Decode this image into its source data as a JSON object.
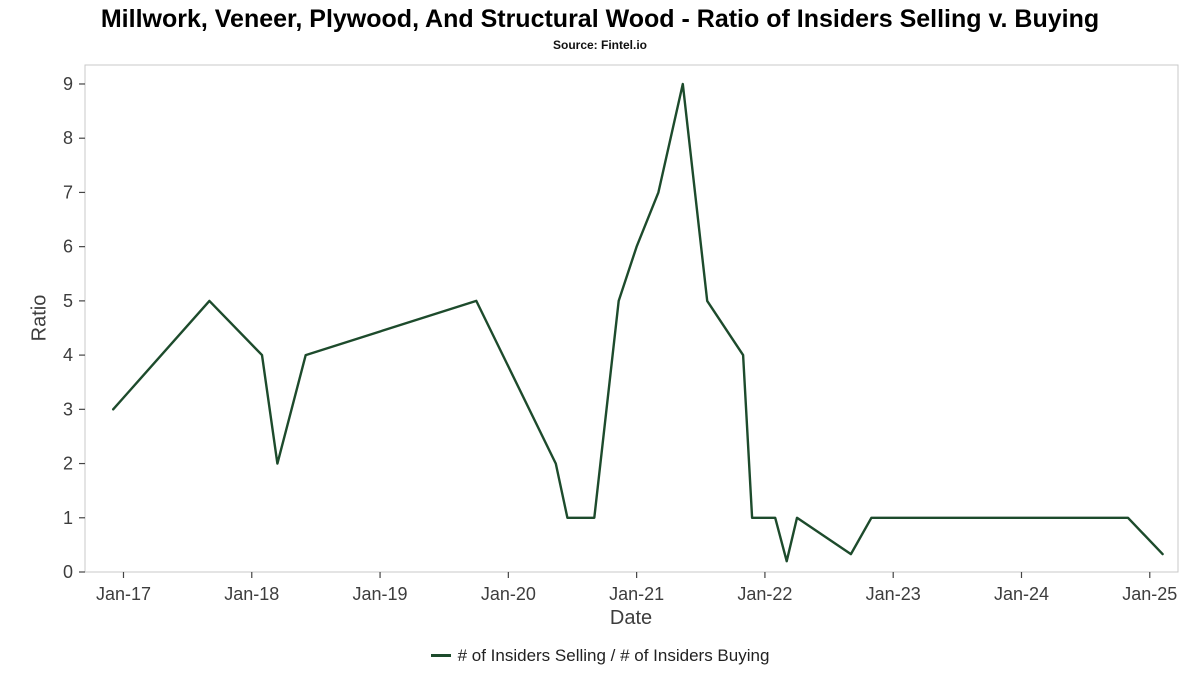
{
  "chart_data": {
    "type": "line",
    "title": "Millwork, Veneer, Plywood, And Structural Wood - Ratio of Insiders Selling v. Buying",
    "source": "Source: Fintel.io",
    "xlabel": "Date",
    "ylabel": "Ratio",
    "legend": "# of Insiders Selling / # of Insiders Buying",
    "line_color": "#1d4b2c",
    "axis_text_color": "#3d3d3d",
    "x_domain": [
      2016.7,
      2025.22
    ],
    "y_domain": [
      0,
      9.35
    ],
    "y_ticks": [
      0,
      1,
      2,
      3,
      4,
      5,
      6,
      7,
      8,
      9
    ],
    "x_ticks": [
      {
        "x": 2017,
        "label": "Jan-17"
      },
      {
        "x": 2018,
        "label": "Jan-18"
      },
      {
        "x": 2019,
        "label": "Jan-19"
      },
      {
        "x": 2020,
        "label": "Jan-20"
      },
      {
        "x": 2021,
        "label": "Jan-21"
      },
      {
        "x": 2022,
        "label": "Jan-22"
      },
      {
        "x": 2023,
        "label": "Jan-23"
      },
      {
        "x": 2024,
        "label": "Jan-24"
      },
      {
        "x": 2025,
        "label": "Jan-25"
      }
    ],
    "points": [
      {
        "date": "Dec-16",
        "x": 2016.92,
        "y": 3
      },
      {
        "date": "Sep-17",
        "x": 2017.67,
        "y": 5
      },
      {
        "date": "Jan-18",
        "x": 2018.08,
        "y": 4
      },
      {
        "date": "Mar-18",
        "x": 2018.2,
        "y": 2
      },
      {
        "date": "Jun-18",
        "x": 2018.42,
        "y": 4
      },
      {
        "date": "Oct-19",
        "x": 2019.75,
        "y": 5
      },
      {
        "date": "May-20",
        "x": 2020.37,
        "y": 2
      },
      {
        "date": "Jun-20",
        "x": 2020.46,
        "y": 1
      },
      {
        "date": "Sep-20",
        "x": 2020.67,
        "y": 1
      },
      {
        "date": "Nov-20",
        "x": 2020.86,
        "y": 5
      },
      {
        "date": "Jan-21",
        "x": 2021.0,
        "y": 6
      },
      {
        "date": "Mar-21",
        "x": 2021.17,
        "y": 7
      },
      {
        "date": "May-21",
        "x": 2021.36,
        "y": 9
      },
      {
        "date": "Jul-21",
        "x": 2021.55,
        "y": 5
      },
      {
        "date": "Nov-21",
        "x": 2021.83,
        "y": 4
      },
      {
        "date": "Dec-21",
        "x": 2021.9,
        "y": 1
      },
      {
        "date": "Feb-22",
        "x": 2022.08,
        "y": 1
      },
      {
        "date": "Mar-22",
        "x": 2022.17,
        "y": 0.2
      },
      {
        "date": "Apr-22",
        "x": 2022.25,
        "y": 1
      },
      {
        "date": "Sep-22",
        "x": 2022.67,
        "y": 0.33
      },
      {
        "date": "Nov-22",
        "x": 2022.83,
        "y": 1
      },
      {
        "date": "Nov-24",
        "x": 2024.83,
        "y": 1
      },
      {
        "date": "Feb-25",
        "x": 2025.1,
        "y": 0.33
      }
    ]
  }
}
